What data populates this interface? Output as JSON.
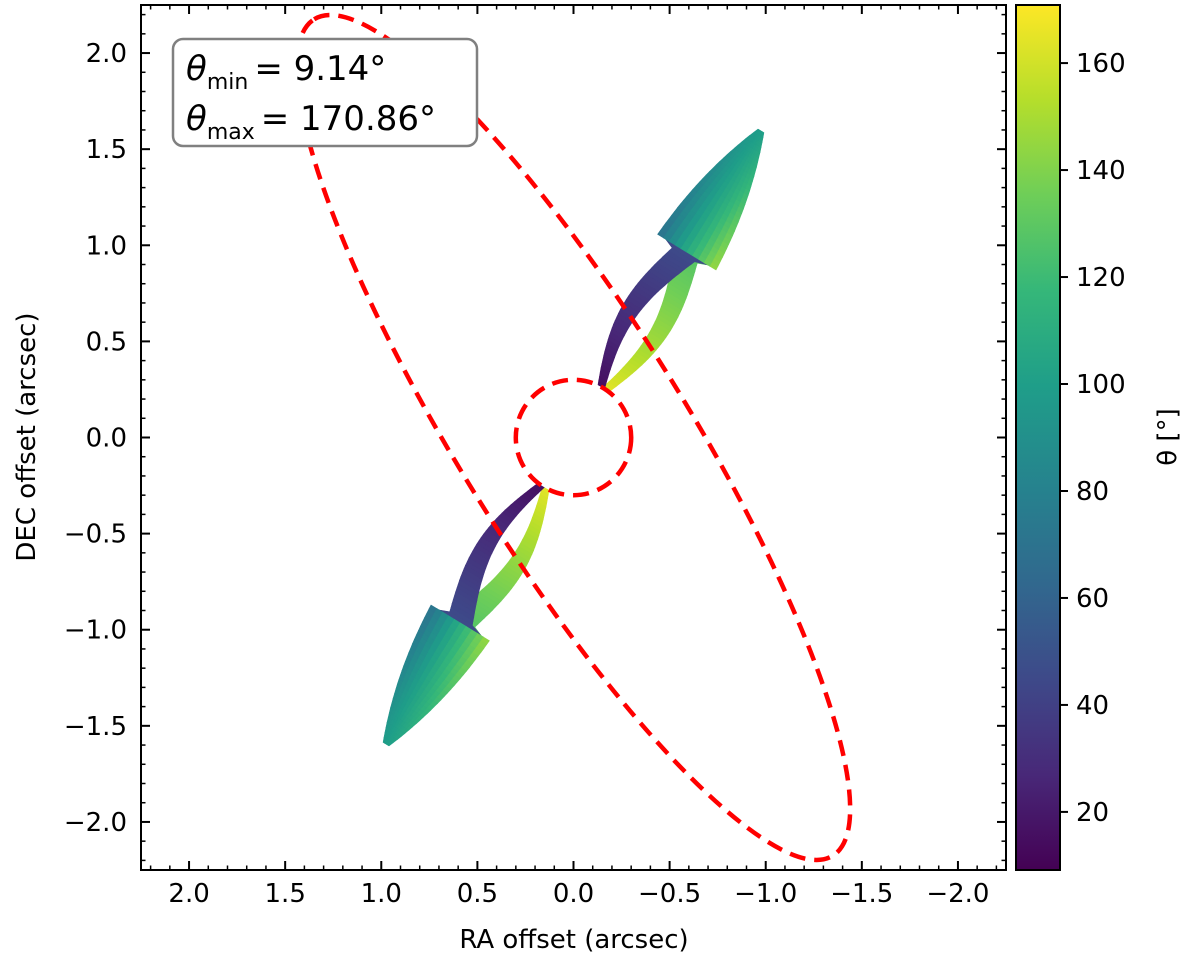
{
  "chart_data": {
    "type": "heatmap",
    "xlabel": "RA offset (arcsec)",
    "ylabel": "DEC offset (arcsec)",
    "xlim": [
      2.25,
      -2.25
    ],
    "ylim": [
      -2.25,
      2.25
    ],
    "x_ticks": [
      2.0,
      1.5,
      1.0,
      0.5,
      0.0,
      -0.5,
      -1.0,
      -1.5,
      -2.0
    ],
    "x_tick_labels": [
      "2.0",
      "1.5",
      "1.0",
      "0.5",
      "0.0",
      "−0.5",
      "−1.0",
      "−1.5",
      "−2.0"
    ],
    "y_ticks": [
      2.0,
      1.5,
      1.0,
      0.5,
      0.0,
      -0.5,
      -1.0,
      -1.5,
      -2.0
    ],
    "y_tick_labels": [
      "2.0",
      "1.5",
      "1.0",
      "0.5",
      "0.0",
      "−0.5",
      "−1.0",
      "−1.5",
      "−2.0"
    ],
    "colorbar": {
      "label": "θ [°]",
      "colormap": "viridis",
      "range": [
        9.14,
        170.86
      ],
      "ticks": [
        20,
        40,
        60,
        80,
        100,
        120,
        140,
        160
      ],
      "tick_labels": [
        "20",
        "40",
        "60",
        "80",
        "100",
        "120",
        "140",
        "160"
      ]
    },
    "annotation": {
      "line1": {
        "symbol": "θ",
        "sub": "min",
        "value": "= 9.14°"
      },
      "line2": {
        "symbol": "θ",
        "sub": "max",
        "value": "= 170.86°"
      }
    },
    "outer_ellipse": {
      "center": [
        0.0,
        0.0
      ],
      "semi_major": 2.56,
      "semi_minor": 0.59,
      "axis_direction_deg": 58.2,
      "color": "#ff0000",
      "style": "dashed"
    },
    "inner_circle": {
      "center": [
        0.0,
        0.0
      ],
      "radius": 0.3,
      "color": "#ff0000",
      "style": "dashed"
    },
    "data_region": {
      "description_values": "theta in degrees, mapped with viridis",
      "endpoints": [
        [
          0.97,
          -1.59
        ],
        [
          -0.98,
          1.6
        ]
      ],
      "hole_top_end": [
        -0.6,
        0.98
      ],
      "hole_bottom_end": [
        0.56,
        -0.93
      ],
      "upper_band_theta": {
        "near_center": 165,
        "far_end": 100
      },
      "lower_band_theta": {
        "near_center": 15,
        "far_end": 70
      }
    }
  }
}
